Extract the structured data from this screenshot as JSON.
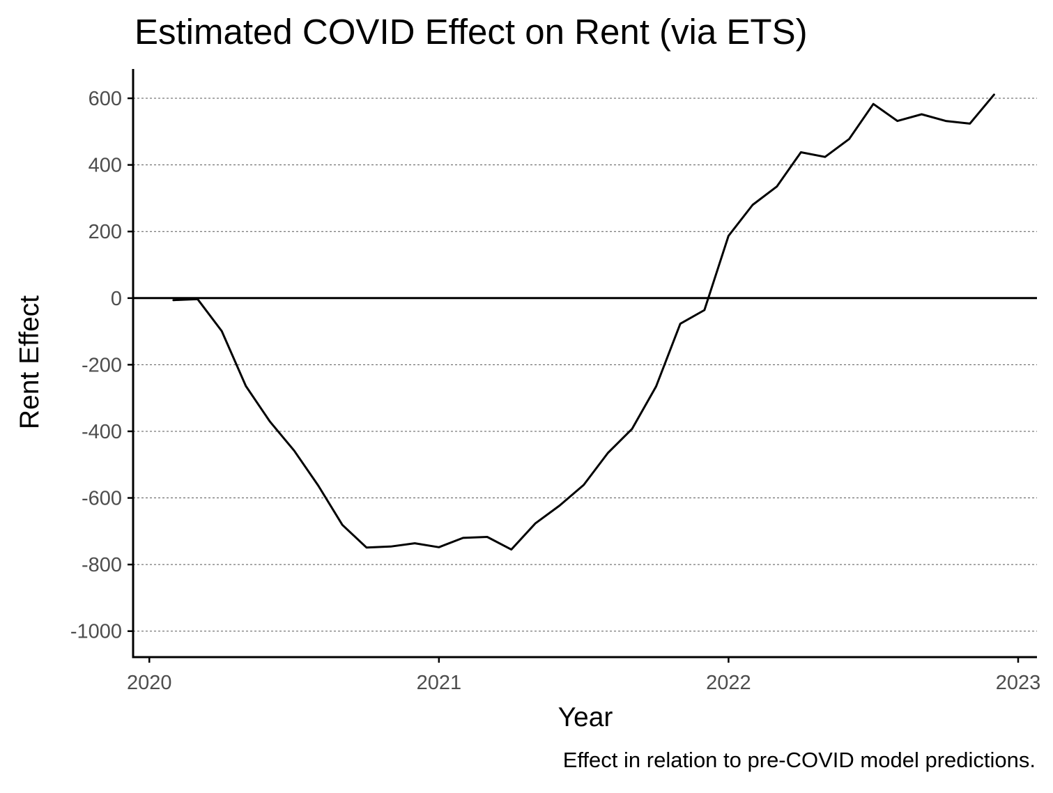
{
  "chart_data": {
    "type": "line",
    "title": "Estimated COVID Effect on Rent (via ETS)",
    "xlabel": "Year",
    "ylabel": "Rent Effect",
    "caption": "Effect in relation to pre-COVID model predictions.",
    "x_ticks": [
      2020,
      2021,
      2022,
      2023
    ],
    "y_ticks": [
      600,
      400,
      200,
      0,
      -200,
      -400,
      -600,
      -800,
      -1000
    ],
    "xlim": [
      2019.944,
      2023.065
    ],
    "ylim": [
      -1078,
      688
    ],
    "grid": "horizontal-dashed",
    "reference_line_y": 0,
    "series": [
      {
        "x": [
          "2020-02",
          "2020-03",
          "2020-04",
          "2020-05",
          "2020-06",
          "2020-07",
          "2020-08",
          "2020-09",
          "2020-10",
          "2020-11",
          "2020-12",
          "2021-01",
          "2021-02",
          "2021-03",
          "2021-04",
          "2021-05",
          "2021-06",
          "2021-07",
          "2021-08",
          "2021-09",
          "2021-10",
          "2021-11",
          "2021-12",
          "2022-01",
          "2022-02",
          "2022-03",
          "2022-04",
          "2022-05",
          "2022-06",
          "2022-07",
          "2022-08",
          "2022-09",
          "2022-10",
          "2022-11",
          "2022-12"
        ],
        "values": [
          -6,
          -3,
          -99,
          -264,
          -371,
          -458,
          -563,
          -681,
          -749,
          -746,
          -736,
          -748,
          -720,
          -717,
          -755,
          -676,
          -623,
          -561,
          -465,
          -393,
          -265,
          -77,
          -36,
          187,
          280,
          335,
          438,
          424,
          478,
          583,
          532,
          552,
          532,
          524,
          611
        ]
      }
    ]
  }
}
